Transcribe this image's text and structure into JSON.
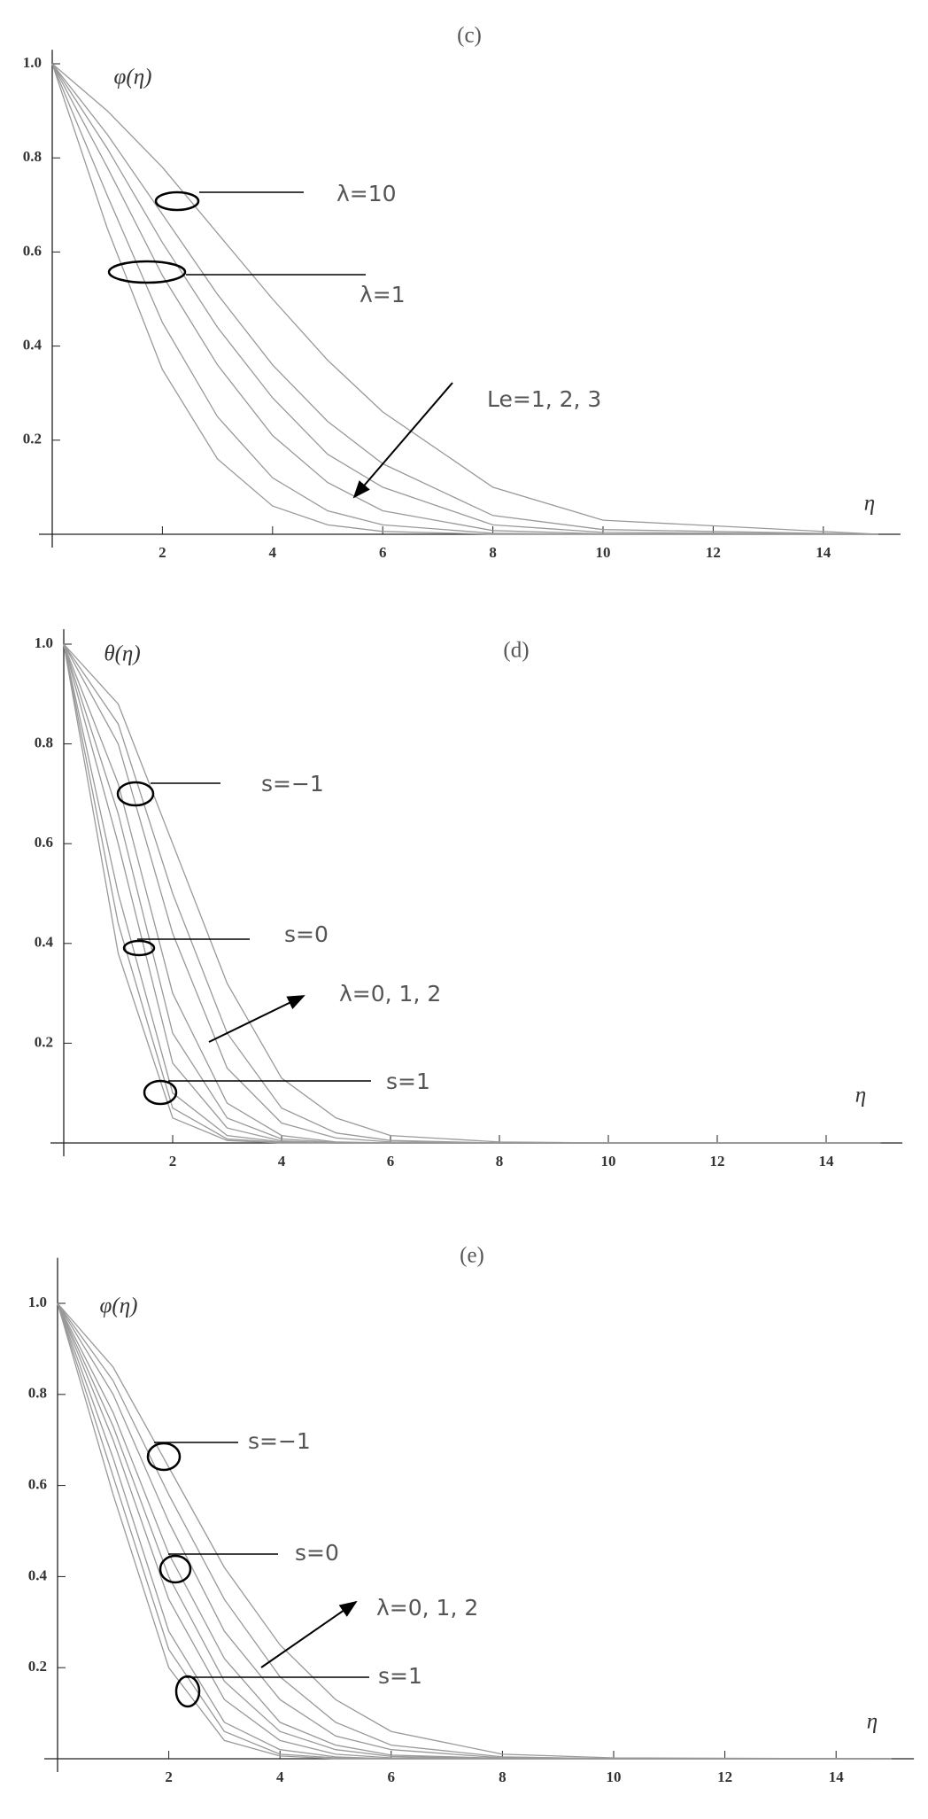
{
  "chart_data": [
    {
      "type": "line",
      "title": "(c)",
      "ylabel": "φ(η)",
      "xlabel": "η",
      "annotations": [
        "λ=10",
        "λ=1",
        "Le=1, 2, 3"
      ],
      "x": [
        0,
        1,
        2,
        3,
        4,
        5,
        6,
        8,
        10,
        15
      ],
      "series": [
        {
          "color": "#999999",
          "values": [
            1,
            0.9,
            0.78,
            0.64,
            0.5,
            0.37,
            0.26,
            0.1,
            0.03,
            0
          ]
        },
        {
          "color": "#999999",
          "values": [
            1,
            0.85,
            0.68,
            0.51,
            0.36,
            0.24,
            0.15,
            0.04,
            0.01,
            0
          ]
        },
        {
          "color": "#999999",
          "values": [
            1,
            0.82,
            0.62,
            0.44,
            0.29,
            0.17,
            0.1,
            0.02,
            0.004,
            0
          ]
        },
        {
          "color": "#999999",
          "values": [
            1,
            0.78,
            0.55,
            0.36,
            0.21,
            0.11,
            0.05,
            0.008,
            0.001,
            0
          ]
        },
        {
          "color": "#999999",
          "values": [
            1,
            0.72,
            0.45,
            0.25,
            0.12,
            0.05,
            0.02,
            0.002,
            0,
            0
          ]
        },
        {
          "color": "#999999",
          "values": [
            1,
            0.65,
            0.35,
            0.16,
            0.06,
            0.02,
            0.006,
            0,
            0,
            0
          ]
        }
      ],
      "xlim": [
        0,
        15.4
      ],
      "ylim": [
        0,
        1.03
      ],
      "xticks": [
        2,
        4,
        6,
        8,
        10,
        12,
        14
      ],
      "yticks": [
        0.2,
        0.4,
        0.6,
        0.8,
        {
          "value": 1,
          "label": "1.0"
        }
      ]
    },
    {
      "type": "line",
      "title": "(d)",
      "ylabel": "θ(η)",
      "xlabel": "η",
      "annotations": [
        "s=−1",
        "s=0",
        "λ=0, 1, 2",
        "s=1"
      ],
      "x": [
        0,
        1,
        2,
        3,
        4,
        5,
        6,
        8,
        10,
        15
      ],
      "series": [
        {
          "color": "#999999",
          "values": [
            1,
            0.88,
            0.6,
            0.32,
            0.13,
            0.05,
            0.015,
            0.002,
            0,
            0
          ]
        },
        {
          "color": "#999999",
          "values": [
            1,
            0.84,
            0.5,
            0.22,
            0.07,
            0.02,
            0.005,
            0,
            0,
            0
          ]
        },
        {
          "color": "#999999",
          "values": [
            1,
            0.8,
            0.42,
            0.15,
            0.04,
            0.01,
            0.002,
            0,
            0,
            0
          ]
        },
        {
          "color": "#999999",
          "values": [
            1,
            0.72,
            0.3,
            0.08,
            0.015,
            0.002,
            0,
            0,
            0,
            0
          ]
        },
        {
          "color": "#999999",
          "values": [
            1,
            0.66,
            0.22,
            0.05,
            0.008,
            0.001,
            0,
            0,
            0,
            0
          ]
        },
        {
          "color": "#999999",
          "values": [
            1,
            0.6,
            0.16,
            0.03,
            0.004,
            0,
            0,
            0,
            0,
            0
          ]
        },
        {
          "color": "#999999",
          "values": [
            1,
            0.5,
            0.1,
            0.015,
            0.002,
            0,
            0,
            0,
            0,
            0
          ]
        },
        {
          "color": "#999999",
          "values": [
            1,
            0.44,
            0.07,
            0.008,
            0.001,
            0,
            0,
            0,
            0,
            0
          ]
        },
        {
          "color": "#999999",
          "values": [
            1,
            0.38,
            0.05,
            0.005,
            0,
            0,
            0,
            0,
            0,
            0
          ]
        }
      ],
      "xlim": [
        0,
        15.4
      ],
      "ylim": [
        0,
        1.03
      ],
      "xticks": [
        2,
        4,
        6,
        8,
        10,
        12,
        14
      ],
      "yticks": [
        0.2,
        0.4,
        0.6,
        0.8,
        {
          "value": 1,
          "label": "1.0"
        }
      ]
    },
    {
      "type": "line",
      "title": "(e)",
      "ylabel": "φ(η)",
      "xlabel": "η",
      "annotations": [
        "s=−1",
        "s=0",
        "λ=0, 1, 2",
        "s=1"
      ],
      "x": [
        0,
        1,
        2,
        3,
        4,
        5,
        6,
        8,
        10,
        15
      ],
      "series": [
        {
          "color": "#999999",
          "values": [
            1,
            0.86,
            0.64,
            0.42,
            0.25,
            0.13,
            0.06,
            0.01,
            0.002,
            0
          ]
        },
        {
          "color": "#999999",
          "values": [
            1,
            0.83,
            0.58,
            0.35,
            0.18,
            0.08,
            0.03,
            0.004,
            0,
            0
          ]
        },
        {
          "color": "#999999",
          "values": [
            1,
            0.8,
            0.52,
            0.28,
            0.13,
            0.05,
            0.02,
            0.002,
            0,
            0
          ]
        },
        {
          "color": "#999999",
          "values": [
            1,
            0.76,
            0.45,
            0.22,
            0.08,
            0.03,
            0.008,
            0.001,
            0,
            0
          ]
        },
        {
          "color": "#999999",
          "values": [
            1,
            0.73,
            0.4,
            0.17,
            0.06,
            0.02,
            0.005,
            0,
            0,
            0
          ]
        },
        {
          "color": "#999999",
          "values": [
            1,
            0.7,
            0.35,
            0.13,
            0.04,
            0.01,
            0.002,
            0,
            0,
            0
          ]
        },
        {
          "color": "#999999",
          "values": [
            1,
            0.66,
            0.28,
            0.08,
            0.02,
            0.004,
            0,
            0,
            0,
            0
          ]
        },
        {
          "color": "#999999",
          "values": [
            1,
            0.62,
            0.24,
            0.06,
            0.01,
            0.002,
            0,
            0,
            0,
            0
          ]
        },
        {
          "color": "#999999",
          "values": [
            1,
            0.58,
            0.2,
            0.04,
            0.006,
            0,
            0,
            0,
            0,
            0
          ]
        }
      ],
      "xlim": [
        0,
        15.4
      ],
      "ylim": [
        0,
        1.1
      ],
      "xticks": [
        2,
        4,
        6,
        8,
        10,
        12,
        14
      ],
      "yticks": [
        0.2,
        0.4,
        0.6,
        0.8,
        {
          "value": 1,
          "label": "1.0"
        }
      ]
    }
  ]
}
